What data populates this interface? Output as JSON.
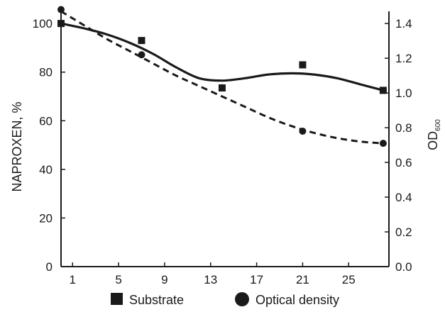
{
  "chart_data": {
    "type": "scatter",
    "xlabel": "",
    "ylabel": "NAPROXEN, %",
    "y2label_main": "OD",
    "y2label_sub": "600",
    "xlim": [
      0,
      28.5
    ],
    "ylim": [
      0,
      105
    ],
    "y2lim": [
      0,
      1.47
    ],
    "x_ticks": [
      1,
      5,
      9,
      13,
      17,
      21,
      25
    ],
    "y_ticks": [
      0,
      20,
      40,
      60,
      80,
      100
    ],
    "y2_ticks": [
      "0.0",
      "0.2",
      "0.4",
      "0.6",
      "0.8",
      "1.0",
      "1.2",
      "1.4"
    ],
    "series": [
      {
        "name": "Substrate",
        "axis": "left",
        "marker": "square",
        "line": "solid",
        "x": [
          0,
          7,
          14,
          21,
          28
        ],
        "y": [
          100,
          93,
          73.5,
          83,
          72.5
        ],
        "fit_x": [
          0,
          2,
          4,
          6,
          8,
          10,
          12,
          14,
          16,
          18,
          20,
          22,
          24,
          26,
          28
        ],
        "fit_y": [
          100,
          98,
          95.5,
          92,
          87.5,
          82,
          77.5,
          76.5,
          77.5,
          79,
          79.5,
          79,
          77.5,
          75,
          72.5
        ]
      },
      {
        "name": "Optical density",
        "axis": "right",
        "marker": "circle",
        "line": "dashed",
        "x": [
          0,
          7,
          14,
          21,
          28
        ],
        "y": [
          1.48,
          1.22,
          1.03,
          0.78,
          0.71
        ],
        "fit_x": [
          0,
          2,
          4,
          6,
          8,
          10,
          12,
          14,
          16,
          18,
          20,
          22,
          24,
          26,
          28
        ],
        "fit_y": [
          1.47,
          1.39,
          1.31,
          1.24,
          1.17,
          1.1,
          1.04,
          0.98,
          0.92,
          0.86,
          0.81,
          0.77,
          0.74,
          0.72,
          0.71
        ]
      }
    ],
    "legend": {
      "placement": "bottom",
      "items": [
        {
          "label": "Substrate",
          "marker": "square"
        },
        {
          "label": "Optical density",
          "marker": "circle"
        }
      ]
    },
    "grid": false,
    "color": "#1a1a1a"
  }
}
